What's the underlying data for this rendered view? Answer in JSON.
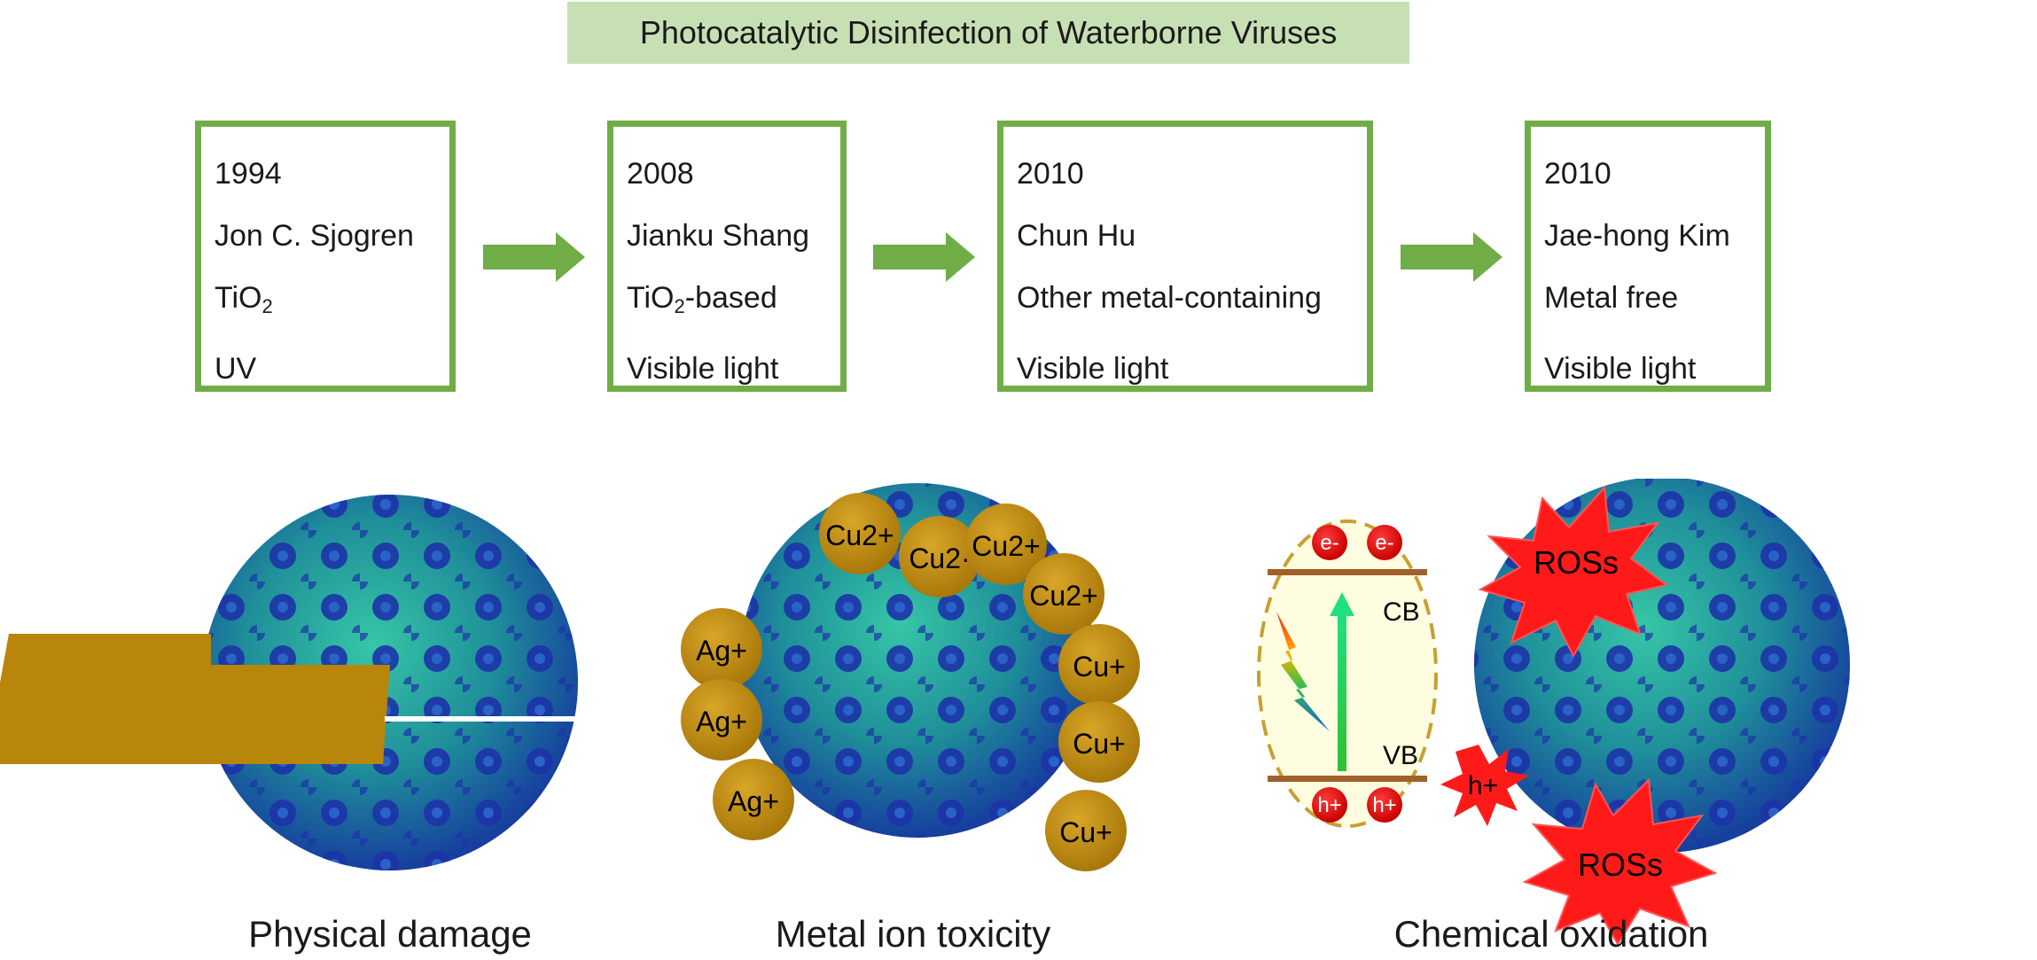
{
  "title": "Photocatalytic Disinfection of Waterborne Viruses",
  "timeline": [
    {
      "year": "1994",
      "author": "Jon C. Sjogren",
      "material_prefix": "TiO",
      "material_sub": "2",
      "material_suffix": "",
      "light": "UV"
    },
    {
      "year": "2008",
      "author": "Jianku Shang",
      "material_prefix": "TiO",
      "material_sub": "2",
      "material_suffix": "-based",
      "light": "Visible light"
    },
    {
      "year": "2010",
      "author": "Chun Hu",
      "material_prefix": "Other metal-containing",
      "material_sub": "",
      "material_suffix": "",
      "light": "Visible light"
    },
    {
      "year": "2010",
      "author": "Jae-hong Kim",
      "material_prefix": "Metal free",
      "material_sub": "",
      "material_suffix": "",
      "light": "Visible light"
    }
  ],
  "mechanisms": [
    {
      "caption": "Physical damage"
    },
    {
      "caption": "Metal ion toxicity"
    },
    {
      "caption": "Chemical oxidation"
    }
  ],
  "ions": {
    "cu2": "Cu2+",
    "cu2_short": "Cu2·",
    "cu1": "Cu+",
    "ag1": "Ag+"
  },
  "band": {
    "cb": "CB",
    "vb": "VB",
    "electron": "e-",
    "hole": "h+",
    "ros": "ROSs"
  },
  "colors": {
    "accent": "#70ad47",
    "banner": "#c6e0b4",
    "gold": "#b8860b",
    "virus_dark": "#1a3aa8",
    "virus_light": "#2ab89a",
    "ros": "#ff1a1a"
  }
}
